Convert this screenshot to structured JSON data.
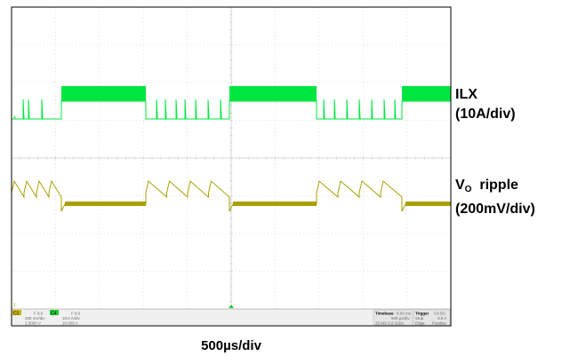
{
  "chart_data": {
    "type": "line",
    "grid": true,
    "x_divisions": 10,
    "y_divisions": 8,
    "series": [
      {
        "name": "ILX",
        "scale": "10A/div",
        "color": "#00e640"
      },
      {
        "name": "VO ripple",
        "scale": "200mV/div",
        "color": "#a8a000"
      }
    ],
    "ilx_label": "ILX",
    "ilx_scale": "(10A/div)",
    "vo_label_main": "V",
    "vo_label_sub": "O",
    "vo_label_rest": "  ripple",
    "vo_scale": "(200mV/div)",
    "x_scale": "500µs/div",
    "scope_panel": {
      "c1_tag": "C1",
      "c1_top": "F 8.0",
      "c1_val": "200 mV/div",
      "c1_off": "2.5000 V",
      "c4_tag": "C4",
      "c4_top": "F 8.0",
      "c4_val": "10.0 A/div",
      "c4_off": "10.000 A",
      "timebase_label": "Timebase",
      "timebase_val": "8.00 ms",
      "timebase_div": "500 µs/div",
      "timebase_rate": "25 MS 5.0 GS/s",
      "trigger_label": "Trigger",
      "trigger_val": "C4 DC",
      "trigger_mode": "Stop",
      "trigger_level": "0.0 A",
      "trigger_edge": "Edge",
      "trigger_slope": "Positive"
    }
  }
}
